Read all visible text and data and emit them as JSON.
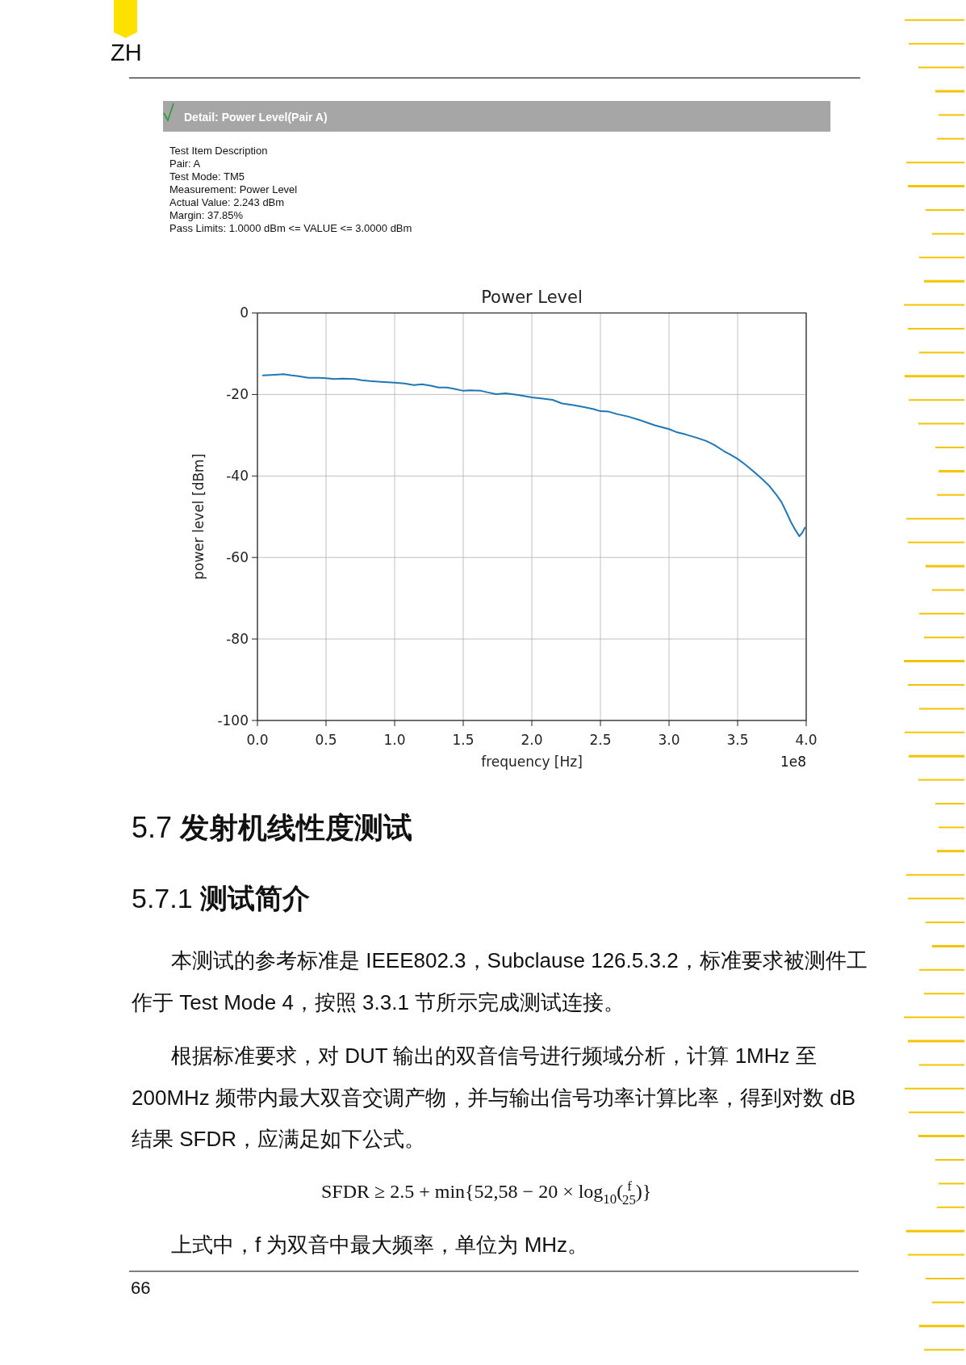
{
  "chart_data": {
    "type": "line",
    "title": "Power Level",
    "xlabel": "frequency [Hz]",
    "ylabel": "power level [dBm]",
    "xlim": [
      0,
      4
    ],
    "xticks": [
      {
        "value": 0,
        "label": "0.0"
      },
      0.5,
      {
        "value": 1,
        "label": "1.0"
      },
      1.5,
      {
        "value": 2,
        "label": "2.0"
      },
      2.5,
      {
        "value": 3,
        "label": "3.0"
      },
      3.5,
      {
        "value": 4,
        "label": "4.0"
      }
    ],
    "ylim": [
      -100,
      0
    ],
    "yticks": [
      -100,
      -80,
      -60,
      -40,
      -20,
      0
    ],
    "grid": true,
    "series": [
      {
        "color": "#1f77b4",
        "x": [
          0.04,
          0.1,
          0.15,
          0.19,
          0.25,
          0.3,
          0.37,
          0.45,
          0.5,
          0.56,
          0.62,
          0.71,
          0.76,
          0.82,
          0.9,
          0.95,
          1.0,
          1.07,
          1.14,
          1.2,
          1.27,
          1.32,
          1.38,
          1.43,
          1.5,
          1.55,
          1.63,
          1.68,
          1.74,
          1.81,
          1.9,
          2.0,
          2.08,
          2.15,
          2.22,
          2.3,
          2.38,
          2.45,
          2.5,
          2.56,
          2.62,
          2.7,
          2.78,
          2.84,
          2.9,
          3.0,
          3.06,
          3.12,
          3.2,
          3.27,
          3.33,
          3.4,
          3.45,
          3.5,
          3.56,
          3.62,
          3.68,
          3.73,
          3.78,
          3.82,
          3.86,
          3.89,
          3.92,
          3.95,
          3.97,
          3.99
        ],
        "values": [
          -15.3,
          -15.2,
          -15.1,
          -15.0,
          -15.3,
          -15.5,
          -15.9,
          -15.9,
          -16.0,
          -16.2,
          -16.1,
          -16.2,
          -16.5,
          -16.7,
          -16.9,
          -17.0,
          -17.1,
          -17.3,
          -17.7,
          -17.5,
          -17.9,
          -18.3,
          -18.3,
          -18.6,
          -19.1,
          -19.0,
          -19.1,
          -19.5,
          -19.9,
          -19.7,
          -20.1,
          -20.7,
          -21.0,
          -21.3,
          -22.2,
          -22.6,
          -23.1,
          -23.6,
          -24.1,
          -24.2,
          -24.8,
          -25.4,
          -26.2,
          -26.9,
          -27.6,
          -28.5,
          -29.3,
          -29.8,
          -30.6,
          -31.4,
          -32.4,
          -33.9,
          -34.8,
          -35.8,
          -37.3,
          -39.0,
          -40.8,
          -42.4,
          -44.5,
          -46.4,
          -49.2,
          -51.4,
          -53.2,
          -54.8,
          -54.0,
          -52.7
        ]
      }
    ],
    "annotations": [
      "ZH",
      "Detail: Power Level(Pair A)",
      "Test Item Description",
      "Pair: A",
      "Test Mode: TM5",
      "Measurement: Power Level",
      "Actual Value: 2.243 dBm",
      "Margin: 37.85%",
      "Pass Limits: 1.0000 dBm <= VALUE <= 3.0000 dBm",
      "1e8",
      "5.7 发射机线性度测试",
      "5.7.1 测试简介",
      "本测试的参考标准是 IEEE802.3，Subclause 126.5.3.2，标准要求被测件工",
      "作于 Test Mode 4，按照 3.3.1 节所示完成测试连接。",
      "根据标准要求，对 DUT 输出的双音信号进行频域分析，计算 1MHz 至",
      "200MHz 频带内最大双音交调产物，并与输出信号功率计算比率，得到对数 dB",
      "结果 SFDR，应满足如下公式。",
      "SFDR ≥ 2.5 + min{52,58 − 20 × log$_{10}$($^{f}$$_{25}$)}",
      "上式中，f 为双音中最大频率，单位为 MHz。",
      "66"
    ]
  }
}
